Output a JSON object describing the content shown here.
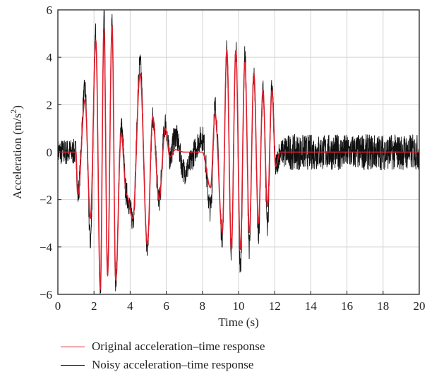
{
  "chart_data": {
    "type": "line",
    "xlabel": "Time (s)",
    "ylabel": "Acceleration (m/s2)",
    "xlim": [
      0,
      20
    ],
    "ylim": [
      -6,
      6
    ],
    "x_ticks": [
      0,
      2,
      4,
      6,
      8,
      10,
      12,
      14,
      16,
      18,
      20
    ],
    "y_ticks": [
      -6,
      -4,
      -2,
      0,
      2,
      4,
      6
    ],
    "x_tick_labels": [
      "0",
      "2",
      "4",
      "6",
      "8",
      "10",
      "12",
      "14",
      "16",
      "18",
      "20"
    ],
    "y_tick_labels": [
      "−6",
      "−4",
      "−2",
      "0",
      "2",
      "4",
      "6"
    ],
    "grid": true,
    "legend_position": "bottom",
    "series": [
      {
        "name": "Original acceleration–time response",
        "color": "#e01d2a",
        "x": [
          0,
          1.0,
          1.1,
          1.5,
          1.8,
          2.1,
          2.35,
          2.55,
          2.75,
          3.0,
          3.2,
          3.5,
          3.8,
          4.15,
          4.55,
          4.95,
          5.25,
          5.6,
          5.95,
          6.2,
          6.5,
          7.0,
          8.0,
          8.45,
          8.7,
          9.1,
          9.35,
          9.6,
          9.85,
          10.1,
          10.35,
          10.6,
          10.85,
          11.1,
          11.35,
          11.6,
          11.85,
          12.05,
          12.3,
          13,
          20
        ],
        "y": [
          0,
          0,
          -1.8,
          2.2,
          -2.8,
          4.7,
          -5.8,
          5.2,
          -5.2,
          5.3,
          -5.4,
          0.8,
          -1.8,
          -2.8,
          3.3,
          -3.9,
          1.5,
          -2.0,
          1.0,
          -0.2,
          0.1,
          0,
          0,
          -1.5,
          1.6,
          -3.4,
          4.3,
          -4.1,
          4.3,
          -4.1,
          3.8,
          -3.4,
          3.3,
          -3.0,
          2.6,
          -2.3,
          2.6,
          -0.6,
          0,
          0,
          0
        ]
      },
      {
        "name": "Noisy acceleration–time response",
        "color": "#111111",
        "x": [
          0,
          1.0,
          1.1,
          1.5,
          1.8,
          2.1,
          2.35,
          2.55,
          2.75,
          3.0,
          3.2,
          3.5,
          3.8,
          4.15,
          4.55,
          4.95,
          5.25,
          5.6,
          5.95,
          6.2,
          6.5,
          7.0,
          8.0,
          8.45,
          8.7,
          9.1,
          9.35,
          9.6,
          9.85,
          10.1,
          10.35,
          10.6,
          10.85,
          11.1,
          11.35,
          11.6,
          11.85,
          12.05,
          12.3,
          13,
          20
        ],
        "y": [
          0,
          0,
          -1.8,
          2.6,
          -3.7,
          5.0,
          -5.8,
          5.9,
          -5.2,
          5.4,
          -5.4,
          1.1,
          -1.8,
          -2.8,
          3.7,
          -4.1,
          1.5,
          -2.0,
          1.2,
          -0.2,
          0.7,
          -0.8,
          0.6,
          -2.4,
          1.9,
          -3.5,
          4.3,
          -4.1,
          4.3,
          -4.9,
          4.0,
          -4.0,
          3.4,
          -3.5,
          2.6,
          -3.0,
          2.7,
          -0.6,
          0,
          0,
          0
        ],
        "noise_amplitude": 1.0
      }
    ]
  }
}
